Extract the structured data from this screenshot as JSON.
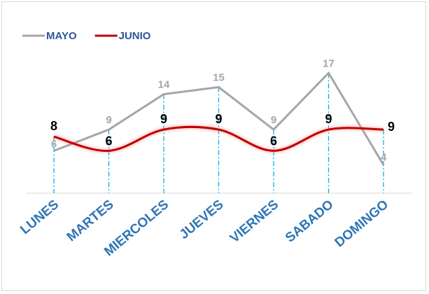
{
  "chart_data": {
    "type": "line",
    "categories": [
      "LUNES",
      "MARTES",
      "MIERCOLES",
      "JUEVES",
      "VIERNES",
      "SABADO",
      "DOMINGO"
    ],
    "series": [
      {
        "name": "MAYO",
        "values": [
          6,
          9,
          14,
          15,
          9,
          17,
          4
        ],
        "color": "#a6a6a6",
        "smooth": false
      },
      {
        "name": "JUNIO",
        "values": [
          8,
          6,
          9,
          9,
          6,
          9,
          9
        ],
        "color": "#c00000",
        "smooth": true
      }
    ],
    "title": "",
    "xlabel": "",
    "ylabel": "",
    "ylim": [
      0,
      21
    ],
    "legend": "top-left",
    "grid": false,
    "drop_line_color": "#00b0f0"
  }
}
